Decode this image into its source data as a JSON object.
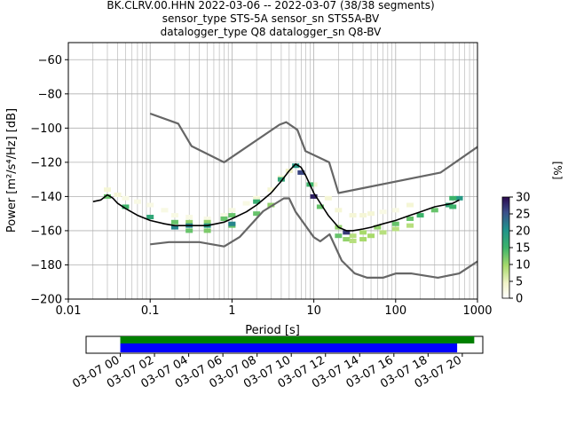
{
  "title_lines": [
    "BK.CLRV.00.HHN   2022-03-06 -- 2022-03-07  (38/38 segments)",
    "sensor_type STS-5A sensor_sn STS5A-BV",
    "datalogger_type Q8 datalogger_sn Q8-BV"
  ],
  "chart_data": [
    {
      "type": "line",
      "xlabel": "Period [s]",
      "ylabel": "Power [m²/s⁴/Hz] [dB]",
      "xscale": "log",
      "xlim": [
        0.01,
        1000
      ],
      "ylim": [
        -200,
        -50
      ],
      "xticks": [
        0.01,
        0.1,
        1,
        10,
        100,
        1000
      ],
      "xtick_labels": [
        "0.01",
        "0.1",
        "1",
        "10",
        "100",
        "1000"
      ],
      "yticks": [
        -200,
        -180,
        -160,
        -140,
        -120,
        -100,
        -80,
        -60
      ],
      "ytick_labels": [
        "−200",
        "−180",
        "−160",
        "−140",
        "−120",
        "−100",
        "−80",
        "−60"
      ],
      "grid": true,
      "series": [
        {
          "role": "noise-model-high",
          "color": "#666666",
          "x": [
            0.1,
            0.22,
            0.32,
            0.8,
            3.8,
            4.6,
            6.3,
            7.9,
            15.4,
            20,
            354.8,
            1000
          ],
          "y": [
            -91.5,
            -97.4,
            -110.5,
            -120,
            -98,
            -96.5,
            -101,
            -113.5,
            -120,
            -138,
            -126,
            -111
          ]
        },
        {
          "role": "noise-model-low",
          "color": "#666666",
          "x": [
            0.1,
            0.17,
            0.4,
            0.8,
            1.24,
            2.4,
            4.3,
            5,
            6,
            10,
            12,
            15.6,
            21.9,
            31.6,
            45,
            70,
            101,
            154,
            328,
            600,
            1000
          ],
          "y": [
            -168,
            -166.7,
            -166.7,
            -169.2,
            -163.7,
            -148.6,
            -141.1,
            -141.1,
            -149,
            -163.8,
            -166.2,
            -162.1,
            -177.5,
            -185,
            -187.5,
            -187.5,
            -185,
            -185,
            -187.5,
            -185,
            -178
          ]
        },
        {
          "role": "mode",
          "color": "#000000",
          "x": [
            0.02,
            0.025,
            0.03,
            0.035,
            0.04,
            0.05,
            0.07,
            0.1,
            0.15,
            0.2,
            0.3,
            0.5,
            0.8,
            1,
            1.5,
            2,
            3,
            4,
            5,
            6,
            7,
            8,
            10,
            15,
            20,
            25,
            30,
            40,
            50,
            70,
            100,
            150,
            200,
            300,
            500,
            600
          ],
          "y": [
            -143,
            -142,
            -139,
            -141,
            -144,
            -147,
            -151,
            -154,
            -156,
            -157,
            -157,
            -157,
            -155,
            -153,
            -149,
            -145,
            -138,
            -131,
            -125,
            -121,
            -123,
            -128,
            -138,
            -151,
            -158,
            -160,
            -160,
            -159,
            -158,
            -156,
            -154,
            -151,
            -149,
            -146,
            -144,
            -142
          ]
        }
      ],
      "density": {
        "colormap": "viridis_white",
        "unit": "[%]",
        "points": [
          [
            0.03,
            -136,
            3
          ],
          [
            0.04,
            -139,
            3
          ],
          [
            0.05,
            -141,
            2
          ],
          [
            0.07,
            -143,
            2
          ],
          [
            0.1,
            -145,
            2
          ],
          [
            0.15,
            -148,
            2
          ],
          [
            0.2,
            -151,
            2
          ],
          [
            0.3,
            -152,
            2
          ],
          [
            0.5,
            -153,
            2
          ],
          [
            0.8,
            -151,
            2
          ],
          [
            1,
            -148,
            2
          ],
          [
            1.5,
            -144,
            2
          ],
          [
            2,
            -141,
            3
          ],
          [
            3,
            -136,
            3
          ],
          [
            4,
            -129,
            4
          ],
          [
            5,
            -125,
            4
          ],
          [
            10,
            -133,
            3
          ],
          [
            15,
            -141,
            3
          ],
          [
            20,
            -148,
            3
          ],
          [
            30,
            -151,
            3
          ],
          [
            40,
            -151,
            3
          ],
          [
            50,
            -150,
            3
          ],
          [
            70,
            -149,
            2
          ],
          [
            100,
            -148,
            2
          ],
          [
            150,
            -145,
            3
          ],
          [
            0.03,
            -140,
            12
          ],
          [
            0.05,
            -146,
            14
          ],
          [
            0.1,
            -152,
            16
          ],
          [
            0.2,
            -155,
            12
          ],
          [
            0.3,
            -155,
            10
          ],
          [
            0.5,
            -155,
            10
          ],
          [
            0.8,
            -153,
            12
          ],
          [
            1,
            -151,
            12
          ],
          [
            2,
            -143,
            15
          ],
          [
            4,
            -130,
            16
          ],
          [
            6,
            -122,
            18
          ],
          [
            9,
            -133,
            14
          ],
          [
            12,
            -146,
            12
          ],
          [
            20,
            -158,
            10
          ],
          [
            30,
            -163,
            8
          ],
          [
            40,
            -161,
            9
          ],
          [
            60,
            -158,
            10
          ],
          [
            100,
            -156,
            12
          ],
          [
            150,
            -153,
            12
          ],
          [
            200,
            -151,
            14
          ],
          [
            300,
            -148,
            12
          ],
          [
            450,
            -145,
            16
          ],
          [
            600,
            -141,
            18
          ],
          [
            0.3,
            -160,
            12
          ],
          [
            0.5,
            -160,
            11
          ],
          [
            1,
            -157,
            12
          ],
          [
            2,
            -150,
            12
          ],
          [
            3,
            -145,
            10
          ],
          [
            20,
            -163,
            12
          ],
          [
            25,
            -165,
            10
          ],
          [
            30,
            -166,
            8
          ],
          [
            40,
            -165,
            9
          ],
          [
            50,
            -163,
            9
          ],
          [
            70,
            -161,
            8
          ],
          [
            100,
            -159,
            8
          ],
          [
            150,
            -157,
            8
          ],
          [
            0.2,
            -158,
            20
          ],
          [
            0.3,
            -157,
            20
          ],
          [
            0.5,
            -157,
            18
          ],
          [
            1,
            -156,
            20
          ],
          [
            7,
            -126,
            25
          ],
          [
            10,
            -140,
            28
          ],
          [
            25,
            -161,
            26
          ],
          [
            500,
            -146,
            14
          ],
          [
            500,
            -141,
            14
          ]
        ],
        "colorbar_ticks": [
          0,
          5,
          10,
          15,
          20,
          25,
          30
        ]
      }
    },
    {
      "type": "timeline",
      "xtick_labels": [
        "03-07 00",
        "03-07 02",
        "03-07 04",
        "03-07 06",
        "03-07 08",
        "03-07 10",
        "03-07 12",
        "03-07 14",
        "03-07 16",
        "03-07 18",
        "03-07 20"
      ],
      "x_hours_range": [
        -2,
        21.2
      ],
      "data_bar": {
        "start_h": 0,
        "end_h": 19.7,
        "color": "#0000ff"
      },
      "coverage_bar": {
        "start_h": 0,
        "end_h": 20.7,
        "color": "#008000"
      }
    }
  ],
  "colorbar_label": "[%]"
}
